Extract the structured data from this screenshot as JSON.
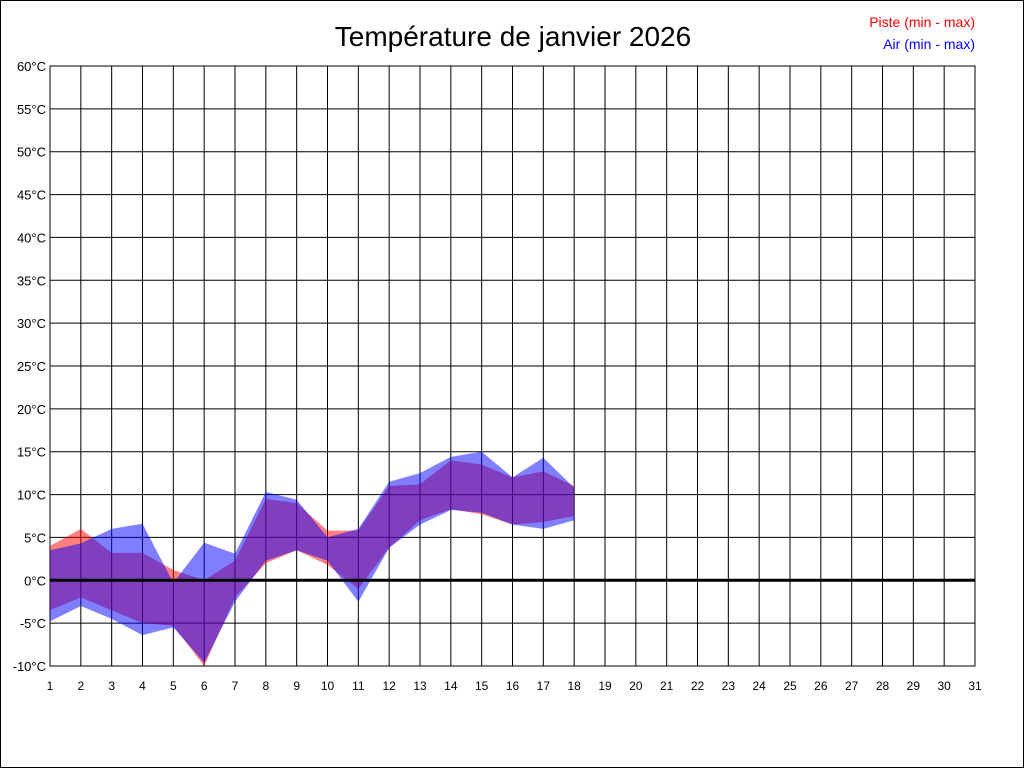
{
  "chart_data": {
    "type": "area",
    "title": "Température de janvier 2026",
    "xlabel": "",
    "ylabel": "",
    "unit_suffix": "°C",
    "x": [
      1,
      2,
      3,
      4,
      5,
      6,
      7,
      8,
      9,
      10,
      11,
      12,
      13,
      14,
      15,
      16,
      17,
      18
    ],
    "x_ticks": [
      1,
      2,
      3,
      4,
      5,
      6,
      7,
      8,
      9,
      10,
      11,
      12,
      13,
      14,
      15,
      16,
      17,
      18,
      19,
      20,
      21,
      22,
      23,
      24,
      25,
      26,
      27,
      28,
      29,
      30,
      31
    ],
    "xlim": [
      1,
      31
    ],
    "ylim": [
      -10,
      60
    ],
    "y_ticks": [
      -10,
      -5,
      0,
      5,
      10,
      15,
      20,
      25,
      30,
      35,
      40,
      45,
      50,
      55,
      60
    ],
    "grid": true,
    "legend_position": "top-right",
    "zero_line": true,
    "series": [
      {
        "name": "Piste (min - max)",
        "color": "#ff0000",
        "fill": "rgba(255,0,0,0.5)",
        "min": [
          -3.5,
          -2,
          -3.5,
          -5,
          -5.3,
          -10,
          -2,
          2,
          3.5,
          1.8,
          -1,
          3.8,
          7,
          8.3,
          7.7,
          6.5,
          6.8,
          7.5
        ],
        "max": [
          4,
          6,
          3.2,
          3.2,
          1.2,
          0,
          2.3,
          9.5,
          9,
          5.8,
          5.8,
          11,
          11.2,
          14,
          13.5,
          12,
          12.7,
          11
        ]
      },
      {
        "name": "Air (min - max)",
        "color": "#0000ff",
        "fill": "rgba(0,0,255,0.5)",
        "min": [
          -4.8,
          -3,
          -4.5,
          -6.4,
          -5.5,
          -9.6,
          -2.5,
          2.3,
          3.5,
          2.3,
          -2.5,
          3.8,
          6.5,
          8.2,
          7.9,
          6.5,
          6,
          7
        ],
        "max": [
          3.5,
          4.3,
          6,
          6.6,
          -0.3,
          4.4,
          3.1,
          10.3,
          9.4,
          5,
          6,
          11.5,
          12.5,
          14.4,
          15,
          12,
          14.3,
          10.8
        ]
      }
    ]
  }
}
